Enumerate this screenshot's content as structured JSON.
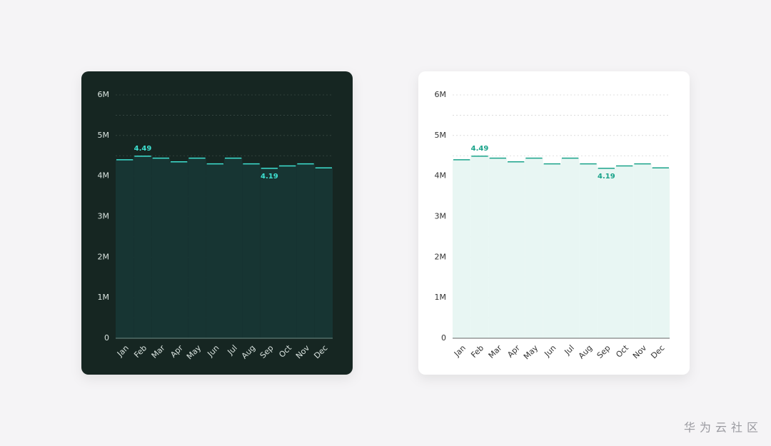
{
  "chart_data": [
    {
      "type": "step-area",
      "theme": "dark",
      "background": "#172620",
      "color": "#3ee0d0",
      "fill": "#173533",
      "text_color": "#d8e2de",
      "grid_color": "#3a4a44",
      "categories": [
        "Jan",
        "Feb",
        "Mar",
        "Apr",
        "May",
        "Jun",
        "Jul",
        "Aug",
        "Sep",
        "Oct",
        "Nov",
        "Dec"
      ],
      "values": [
        4.4,
        4.49,
        4.44,
        4.35,
        4.44,
        4.3,
        4.44,
        4.3,
        4.19,
        4.25,
        4.3,
        4.2
      ],
      "ylim": [
        0,
        6
      ],
      "yticks": [
        0,
        {
          "value": 1,
          "label": "1M"
        },
        {
          "value": 2,
          "label": "2M"
        },
        {
          "value": 3,
          "label": "3M"
        },
        {
          "value": 4,
          "label": "4M"
        },
        {
          "value": 5,
          "label": "5M"
        },
        {
          "value": 6,
          "label": "6M"
        }
      ],
      "minor_yticks": [
        0.5,
        1.5,
        2.5,
        3.5,
        4.5,
        5.5
      ],
      "grid": true,
      "label_extremes": true
    },
    {
      "type": "step-area",
      "theme": "light",
      "background": "#ffffff",
      "color": "#1aa38a",
      "fill": "#e8f6f3",
      "text_color": "#333333",
      "grid_color": "#d6d6d6",
      "categories": [
        "Jan",
        "Feb",
        "Mar",
        "Apr",
        "May",
        "Jun",
        "Jul",
        "Aug",
        "Sep",
        "Oct",
        "Nov",
        "Dec"
      ],
      "values": [
        4.4,
        4.49,
        4.44,
        4.35,
        4.44,
        4.3,
        4.44,
        4.3,
        4.19,
        4.25,
        4.3,
        4.2
      ],
      "ylim": [
        0,
        6
      ],
      "yticks": [
        0,
        {
          "value": 1,
          "label": "1M"
        },
        {
          "value": 2,
          "label": "2M"
        },
        {
          "value": 3,
          "label": "3M"
        },
        {
          "value": 4,
          "label": "4M"
        },
        {
          "value": 5,
          "label": "5M"
        },
        {
          "value": 6,
          "label": "6M"
        }
      ],
      "minor_yticks": [
        0.5,
        1.5,
        2.5,
        3.5,
        4.5,
        5.5
      ],
      "grid": true,
      "label_extremes": true
    }
  ],
  "watermark": "华为云社区"
}
